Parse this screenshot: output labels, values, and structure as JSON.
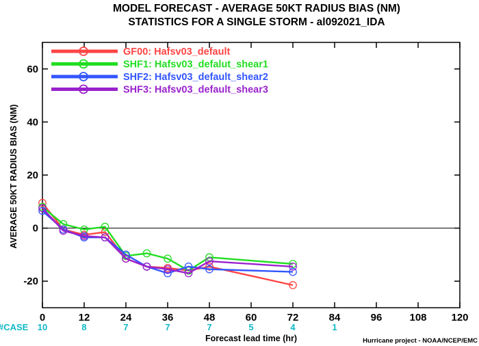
{
  "chart_data": {
    "type": "line",
    "title": "MODEL FORECAST - AVERAGE 50KT RADIUS BIAS (NM)",
    "subtitle": "STATISTICS FOR A SINGLE STORM - al092021_IDA",
    "xlabel": "Forecast lead time (hr)",
    "ylabel": "AVERAGE 50KT RADIUS BIAS (NM)",
    "xlim": [
      0,
      120
    ],
    "ylim": [
      -30,
      70
    ],
    "x_ticks": [
      0,
      12,
      24,
      36,
      48,
      60,
      72,
      84,
      96,
      108,
      120
    ],
    "y_ticks": [
      -20,
      0,
      20,
      40,
      60
    ],
    "zero_line": true,
    "legend_placement": "top-left",
    "series": [
      {
        "name": "GF00: Hafsv03_default",
        "color": "#ff4444",
        "x": [
          0,
          6,
          12,
          18,
          24,
          30,
          36,
          42,
          48,
          72
        ],
        "y": [
          9.5,
          -0.5,
          -2.5,
          -1.5,
          -11.5,
          -14.5,
          -15.0,
          -16.0,
          -14.5,
          -21.5
        ]
      },
      {
        "name": "SHF1: Hafsv03_defalut_shear1",
        "color": "#22dd22",
        "x": [
          0,
          6,
          12,
          18,
          24,
          30,
          36,
          42,
          48,
          72
        ],
        "y": [
          8.0,
          1.5,
          -0.5,
          0.5,
          -10.5,
          -9.5,
          -11.5,
          -16.0,
          -11.0,
          -13.5
        ]
      },
      {
        "name": "SHF2: Hafsv03_default_shear2",
        "color": "#3355ff",
        "x": [
          0,
          6,
          12,
          18,
          24,
          30,
          36,
          42,
          48,
          72
        ],
        "y": [
          6.5,
          -0.5,
          -3.5,
          -3.5,
          -10.0,
          -14.5,
          -17.0,
          -14.5,
          -15.5,
          -16.5
        ]
      },
      {
        "name": "SHF3: Hafsv03_default_shear3",
        "color": "#9922cc",
        "x": [
          0,
          6,
          12,
          18,
          24,
          30,
          36,
          42,
          48,
          72
        ],
        "y": [
          7.5,
          -1.0,
          -3.0,
          -3.5,
          -11.5,
          -14.5,
          -15.5,
          -17.0,
          -12.5,
          -14.5
        ]
      }
    ],
    "case_label": "#CASE",
    "cases": [
      {
        "x": 0,
        "n": "10"
      },
      {
        "x": 12,
        "n": "8"
      },
      {
        "x": 24,
        "n": "7"
      },
      {
        "x": 36,
        "n": "7"
      },
      {
        "x": 48,
        "n": "7"
      },
      {
        "x": 60,
        "n": "5"
      },
      {
        "x": 72,
        "n": "4"
      },
      {
        "x": 84,
        "n": "1"
      }
    ],
    "credit": "Hurricane project - NOAA/NCEP/EMC"
  }
}
